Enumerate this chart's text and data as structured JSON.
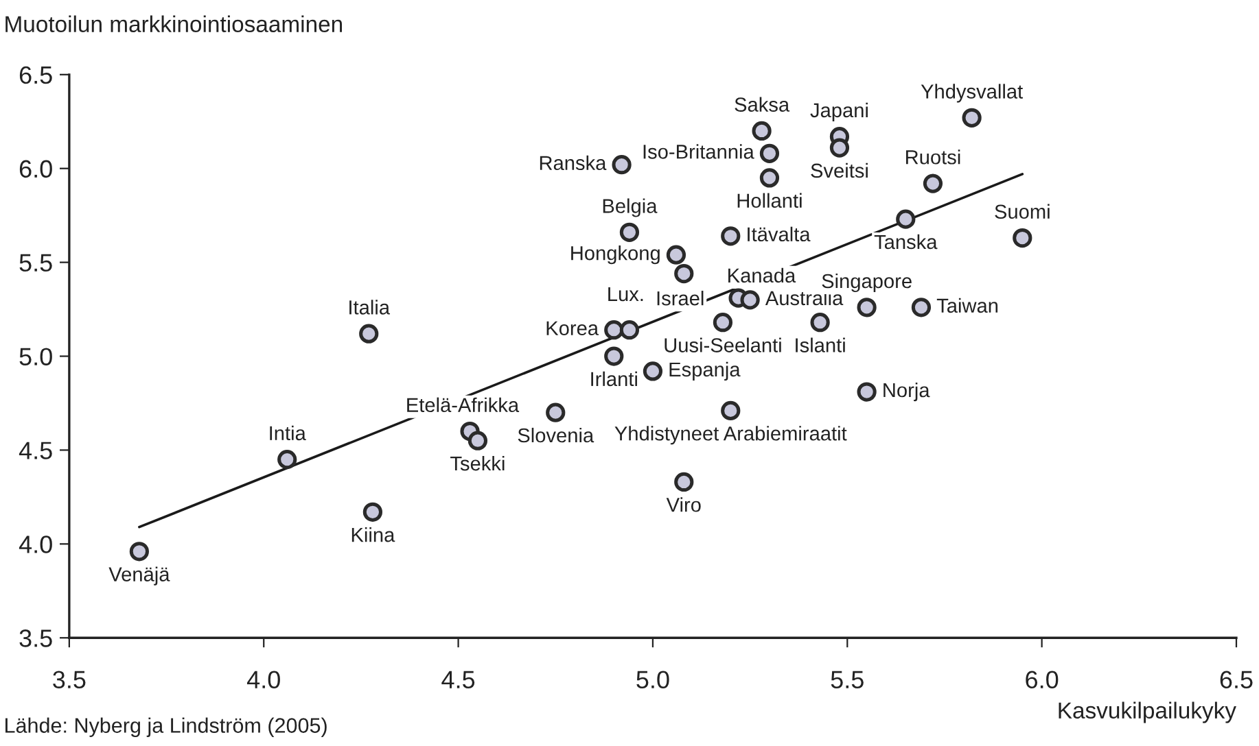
{
  "chart_data": {
    "type": "scatter",
    "xlabel": "Kasvukilpailukyky",
    "ylabel": "Muotoilun markkinointiosaaminen",
    "xlim": [
      3.5,
      6.5
    ],
    "xticks": [
      {
        "value": 3.5,
        "label": "3.5"
      },
      {
        "value": 4.0,
        "label": "4.0"
      },
      {
        "value": 4.5,
        "label": "4.5"
      },
      {
        "value": 5.0,
        "label": "5.0"
      },
      {
        "value": 5.5,
        "label": "5.5"
      },
      {
        "value": 6.0,
        "label": "6.0"
      },
      {
        "value": 6.5,
        "label": "6.5"
      }
    ],
    "ylim": [
      3.5,
      6.5
    ],
    "yticks": [
      {
        "value": 3.5,
        "label": "3.5"
      },
      {
        "value": 4.0,
        "label": "4.0"
      },
      {
        "value": 4.5,
        "label": "4.5"
      },
      {
        "value": 5.0,
        "label": "5.0"
      },
      {
        "value": 5.5,
        "label": "5.5"
      },
      {
        "value": 6.0,
        "label": "6.0"
      },
      {
        "value": 6.5,
        "label": "6.5"
      }
    ],
    "grid": false,
    "marker": "circle",
    "series": [
      {
        "color": "#c8c8dc",
        "x": [
          3.68,
          4.06,
          4.28,
          4.27,
          4.53,
          4.55,
          4.75,
          4.9,
          4.94,
          4.9,
          4.92,
          4.94,
          5.06,
          5.08,
          5.0,
          5.18,
          5.22,
          5.25,
          5.28,
          5.3,
          5.3,
          5.2,
          5.2,
          5.08,
          5.48,
          5.48,
          5.43,
          5.55,
          5.55,
          5.65,
          5.69,
          5.72,
          5.82,
          5.95
        ],
        "values": [
          3.96,
          4.45,
          4.17,
          5.12,
          4.6,
          4.55,
          4.7,
          5.14,
          5.14,
          5.0,
          6.02,
          5.66,
          5.54,
          5.44,
          4.92,
          5.18,
          5.31,
          5.3,
          6.2,
          6.08,
          5.95,
          5.64,
          4.71,
          4.33,
          6.17,
          6.11,
          5.18,
          5.26,
          4.81,
          5.73,
          5.26,
          5.92,
          6.27,
          5.63
        ]
      },
      {
        "type": "line",
        "color": "#1a1a1a",
        "x": [
          3.68,
          5.95
        ],
        "values": [
          4.09,
          5.97
        ],
        "marker": "none",
        "line_style": "solid"
      }
    ],
    "annotations": [
      {
        "text": "Venäjä",
        "x": 3.68,
        "y": 3.96
      },
      {
        "text": "Intia",
        "x": 4.06,
        "y": 4.45
      },
      {
        "text": "Kiina",
        "x": 4.28,
        "y": 4.17
      },
      {
        "text": "Italia",
        "x": 4.27,
        "y": 5.12
      },
      {
        "text": "Etelä-Afrikka",
        "x": 4.53,
        "y": 4.6
      },
      {
        "text": "Tsekki",
        "x": 4.55,
        "y": 4.55
      },
      {
        "text": "Slovenia",
        "x": 4.75,
        "y": 4.7
      },
      {
        "text": "Korea",
        "x": 4.9,
        "y": 5.14
      },
      {
        "text": "Lux.",
        "x": 4.94,
        "y": 5.14
      },
      {
        "text": "Irlanti",
        "x": 4.9,
        "y": 5.0
      },
      {
        "text": "Ranska",
        "x": 4.92,
        "y": 6.02
      },
      {
        "text": "Belgia",
        "x": 4.94,
        "y": 5.66
      },
      {
        "text": "Hongkong",
        "x": 5.06,
        "y": 5.54
      },
      {
        "text": "Israel",
        "x": 5.08,
        "y": 5.44
      },
      {
        "text": "Espanja",
        "x": 5.0,
        "y": 4.92
      },
      {
        "text": "Uusi-Seelanti",
        "x": 5.18,
        "y": 5.18
      },
      {
        "text": "Kanada",
        "x": 5.22,
        "y": 5.31
      },
      {
        "text": "Australia",
        "x": 5.25,
        "y": 5.3
      },
      {
        "text": "Saksa",
        "x": 5.28,
        "y": 6.2
      },
      {
        "text": "Iso-Britannia",
        "x": 5.3,
        "y": 6.08
      },
      {
        "text": "Hollanti",
        "x": 5.3,
        "y": 5.95
      },
      {
        "text": "Itävalta",
        "x": 5.2,
        "y": 5.64
      },
      {
        "text": "Yhdistyneet Arabiemiraatit",
        "x": 5.2,
        "y": 4.71
      },
      {
        "text": "Viro",
        "x": 5.08,
        "y": 4.33
      },
      {
        "text": "Japani",
        "x": 5.48,
        "y": 6.17
      },
      {
        "text": "Sveitsi",
        "x": 5.48,
        "y": 6.11
      },
      {
        "text": "Islanti",
        "x": 5.43,
        "y": 5.18
      },
      {
        "text": "Singapore",
        "x": 5.55,
        "y": 5.26
      },
      {
        "text": "Norja",
        "x": 5.55,
        "y": 4.81
      },
      {
        "text": "Tanska",
        "x": 5.65,
        "y": 5.73
      },
      {
        "text": "Taiwan",
        "x": 5.69,
        "y": 5.26
      },
      {
        "text": "Ruotsi",
        "x": 5.72,
        "y": 5.92
      },
      {
        "text": "Yhdysvallat",
        "x": 5.82,
        "y": 6.27
      },
      {
        "text": "Suomi",
        "x": 5.95,
        "y": 5.63
      },
      "Lähde: Nyberg ja Lindström (2005)"
    ]
  }
}
